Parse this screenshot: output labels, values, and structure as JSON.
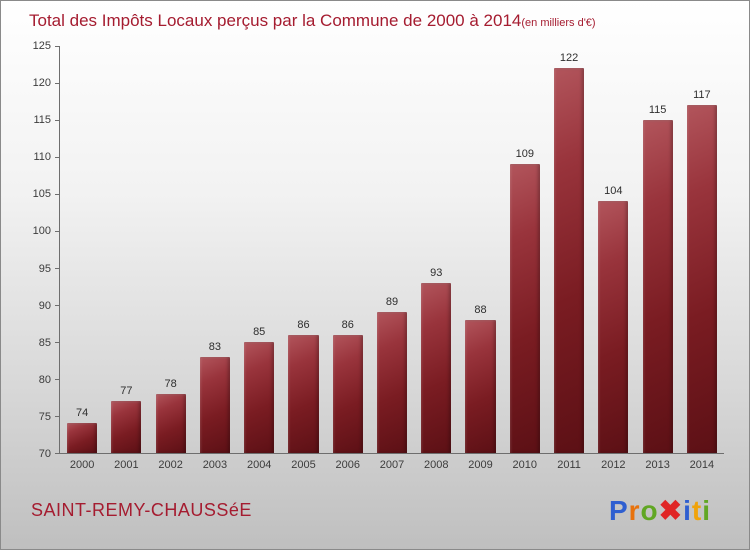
{
  "header": {
    "title": "Total des Impôts Locaux perçus par la Commune de 2000 à 2014",
    "subtitle": "(en milliers d'€)"
  },
  "footer": {
    "commune": "SAINT-REMY-CHAUSSéE",
    "logo_text": "Proxiti",
    "logo_letters": [
      {
        "ch": "P",
        "color": "#2f5fd0"
      },
      {
        "ch": "r",
        "color": "#e8720c"
      },
      {
        "ch": "o",
        "color": "#61a724"
      },
      {
        "ch": "✖",
        "color": "#e02525"
      },
      {
        "ch": "i",
        "color": "#2f5fd0"
      },
      {
        "ch": "t",
        "color": "#f0a30a"
      },
      {
        "ch": "i",
        "color": "#61a724"
      }
    ]
  },
  "chart_data": {
    "type": "bar",
    "title": "Total des Impôts Locaux perçus par la Commune de 2000 à 2014 (en milliers d'€)",
    "categories": [
      "2000",
      "2001",
      "2002",
      "2003",
      "2004",
      "2005",
      "2006",
      "2007",
      "2008",
      "2009",
      "2010",
      "2011",
      "2012",
      "2013",
      "2014"
    ],
    "values": [
      74,
      77,
      78,
      83,
      85,
      86,
      86,
      89,
      93,
      88,
      109,
      122,
      104,
      115,
      117
    ],
    "xlabel": "",
    "ylabel": "",
    "ylim": [
      70,
      125
    ],
    "yticks": [
      70,
      75,
      80,
      85,
      90,
      95,
      100,
      105,
      110,
      115,
      120,
      125
    ],
    "grid": false,
    "legend": false,
    "bar_color_top": "#b2555c",
    "bar_color_bottom": "#5c1015",
    "title_color": "#a51c30",
    "background": "gradient-white-to-gray"
  }
}
